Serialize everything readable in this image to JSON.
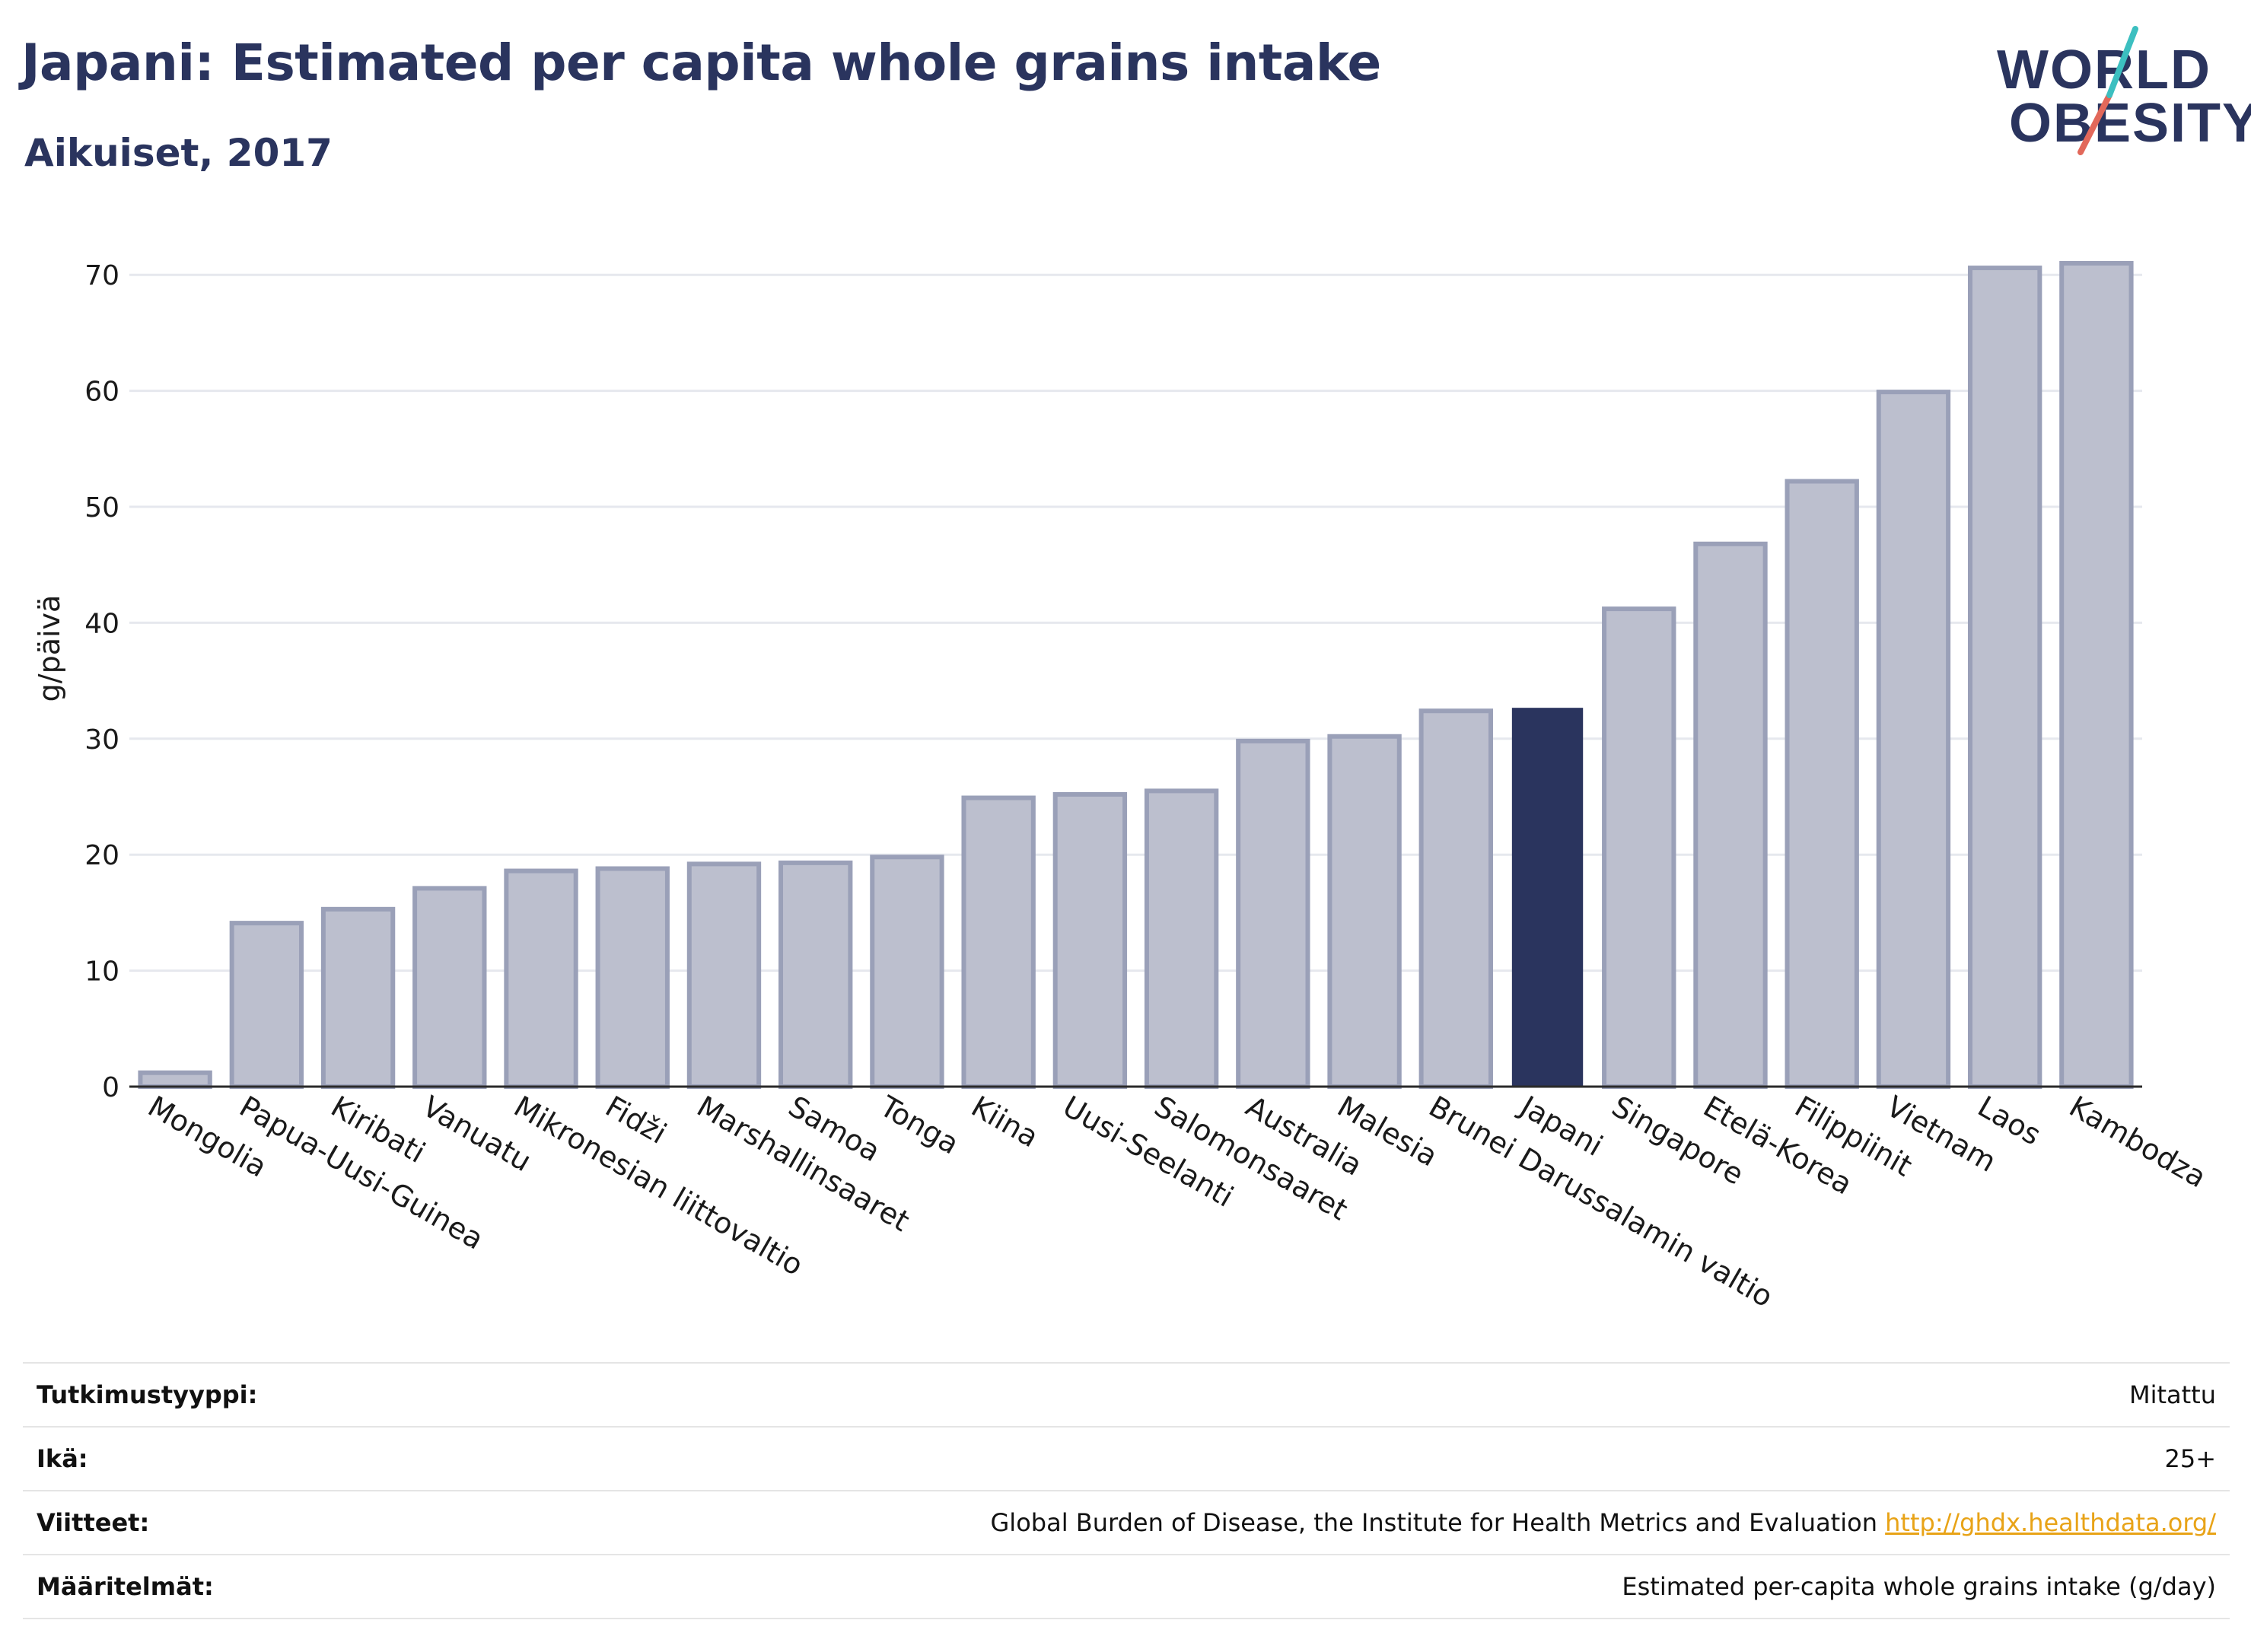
{
  "header": {
    "title": "Japani: Estimated per capita whole grains intake",
    "subtitle": "Aikuiset, 2017"
  },
  "logo": {
    "line1": "WORLD",
    "line2": "OBESITY"
  },
  "chart_data": {
    "type": "bar",
    "ylabel": "g/päivä",
    "ylim": [
      0,
      75
    ],
    "yticks": [
      0,
      10,
      20,
      30,
      40,
      50,
      60,
      70
    ],
    "grid": true,
    "categories": [
      "Mongolia",
      "Papua-Uusi-Guinea",
      "Kiribati",
      "Vanuatu",
      "Mikronesian liittovaltio",
      "Fidži",
      "Marshallinsaaret",
      "Samoa",
      "Tonga",
      "Kiina",
      "Uusi-Seelanti",
      "Salomonsaaret",
      "Australia",
      "Malesia",
      "Brunei Darussalamin valtio",
      "Japani",
      "Singapore",
      "Etelä-Korea",
      "Filippiinit",
      "Vietnam",
      "Laos",
      "Kambodza"
    ],
    "values": [
      1.2,
      14.1,
      15.3,
      17.1,
      18.6,
      18.8,
      19.2,
      19.3,
      19.8,
      24.9,
      25.2,
      25.5,
      29.8,
      30.2,
      32.4,
      32.6,
      41.2,
      46.8,
      52.2,
      59.9,
      70.6,
      71.0
    ],
    "highlight": "Japani",
    "colors": {
      "bar": "#bcbfce",
      "bar_border": "#9aa0b8",
      "highlight": "#2a345e"
    }
  },
  "meta": [
    {
      "key": "Tutkimustyyppi:",
      "value": "Mitattu"
    },
    {
      "key": "Ikä:",
      "value": "25+"
    },
    {
      "key": "Viitteet:",
      "value": "Global Burden of Disease, the Institute for Health Metrics and Evaluation",
      "link": "http://ghdx.healthdata.org/"
    },
    {
      "key": "Määritelmät:",
      "value": "Estimated per-capita whole grains intake (g/day)"
    }
  ]
}
